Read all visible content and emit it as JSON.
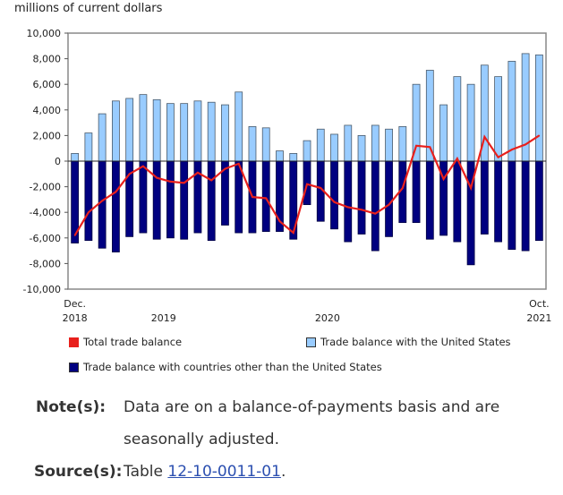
{
  "chart_data": {
    "type": "bar",
    "ylabel": "millions of current dollars",
    "ylim": [
      -10000,
      10000
    ],
    "yticks": [
      10000,
      8000,
      6000,
      4000,
      2000,
      0,
      -2000,
      -4000,
      -6000,
      -8000,
      -10000
    ],
    "ytick_labels": [
      "10,000",
      "8,000",
      "6,000",
      "4,000",
      "2,000",
      "0",
      "-2,000",
      "-4,000",
      "-6,000",
      "-8,000",
      "-10,000"
    ],
    "x_start": "2018-12",
    "x_end": "2021-10",
    "xtick_labels": [
      {
        "line1": "Dec.",
        "line2": "2018",
        "index": 0
      },
      {
        "line1": "",
        "line2": "2019",
        "index": 6.5
      },
      {
        "line1": "",
        "line2": "2020",
        "index": 18.5
      },
      {
        "line1": "Oct.",
        "line2": "2021",
        "index": 34
      }
    ],
    "series": [
      {
        "name": "Trade balance with the United States",
        "type": "bar",
        "color": "#99ccff",
        "values": [
          600,
          2200,
          3700,
          4700,
          4900,
          5200,
          4800,
          4500,
          4500,
          4700,
          4600,
          4400,
          5400,
          2700,
          2600,
          800,
          600,
          1600,
          2500,
          2100,
          2800,
          2000,
          2800,
          2500,
          2700,
          6000,
          7100,
          4400,
          6600,
          6000,
          7500,
          6600,
          7800,
          8400,
          8300
        ]
      },
      {
        "name": "Trade balance with countries other than the United States",
        "type": "bar",
        "color": "#000080",
        "values": [
          -6400,
          -6200,
          -6800,
          -7100,
          -5900,
          -5600,
          -6100,
          -6000,
          -6100,
          -5600,
          -6200,
          -5000,
          -5600,
          -5600,
          -5500,
          -5500,
          -6100,
          -3400,
          -4700,
          -5300,
          -6300,
          -5700,
          -7000,
          -5900,
          -4800,
          -4800,
          -6100,
          -5800,
          -6300,
          -8100,
          -5700,
          -6300,
          -6900,
          -7000,
          -6200
        ]
      },
      {
        "name": "Total trade balance",
        "type": "line",
        "color": "#e8201c",
        "values": [
          -5800,
          -4000,
          -3100,
          -2400,
          -1000,
          -400,
          -1300,
          -1600,
          -1700,
          -900,
          -1500,
          -600,
          -200,
          -2800,
          -2900,
          -4700,
          -5600,
          -1800,
          -2100,
          -3200,
          -3600,
          -3800,
          -4100,
          -3400,
          -2100,
          1200,
          1100,
          -1400,
          200,
          -2100,
          1900,
          300,
          900,
          1300,
          2000
        ]
      }
    ],
    "legend_placement": "bottom",
    "grid": false
  },
  "notes": {
    "note_label": "Note(s):",
    "note_text_1": "Data are on a balance-of-payments basis and are",
    "note_text_2": "seasonally adjusted.",
    "source_label": "Source(s):",
    "source_prefix": "Table ",
    "source_link": "12-10-0011-01",
    "source_suffix": "."
  }
}
